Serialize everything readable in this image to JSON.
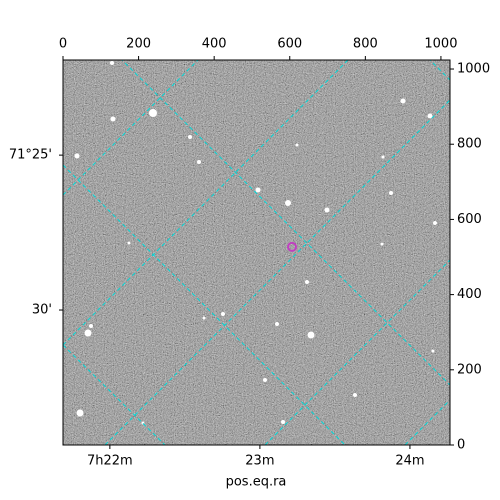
{
  "chart_data": {
    "type": "image",
    "xlabel": "pos.eq.ra",
    "xlim": [
      0,
      1024
    ],
    "xticks": [
      0,
      200,
      400,
      600,
      800,
      1000
    ],
    "ylim": [
      0,
      1024
    ],
    "yticks": [
      0,
      200,
      400,
      600,
      800,
      1000
    ],
    "ra_ticks": [
      {
        "value": 124,
        "label": "7h22m"
      },
      {
        "value": 521,
        "label": "23m"
      },
      {
        "value": 918,
        "label": "24m"
      }
    ],
    "dec_ticks": [
      {
        "value": 771,
        "label": "71°25'"
      },
      {
        "value": 359,
        "label": "30'"
      }
    ],
    "grid_color": "#00d8d8",
    "marker": {
      "x": 606,
      "y": 527,
      "color": "#c040c0"
    }
  }
}
